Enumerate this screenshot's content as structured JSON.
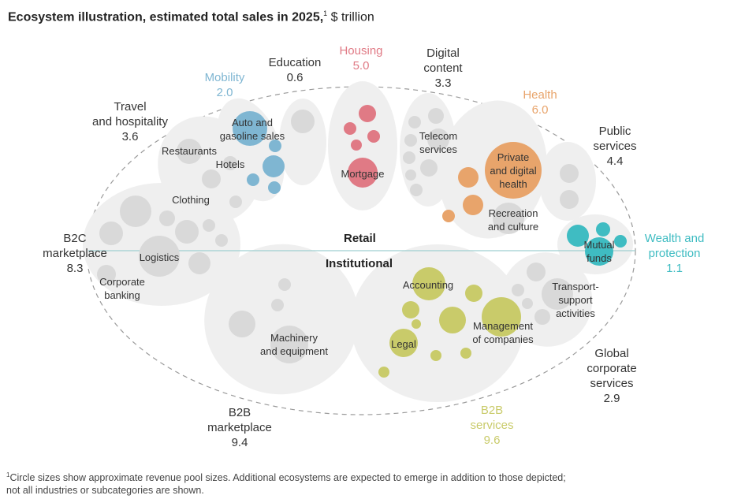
{
  "title": {
    "main": "Ecosystem illustration, estimated total sales in 2025,",
    "marker": "1",
    "unit": " $ trillion"
  },
  "divider": {
    "upper": "Retail",
    "lower": "Institutional"
  },
  "colors": {
    "gray": "#d9d9d9",
    "blob": "#efefef",
    "mobility": "#7fb6d2",
    "housing": "#e07a85",
    "health": "#e8a46b",
    "wealth": "#3fbcc2",
    "b2b": "#c9cb6a",
    "line": "#9fcfd0"
  },
  "ecosystems": [
    {
      "id": "b2c",
      "name": "B2C\nmarketplace",
      "value": "8.3",
      "color": "#333333"
    },
    {
      "id": "travel",
      "name": "Travel\nand hospitality",
      "value": "3.6",
      "color": "#333333"
    },
    {
      "id": "mobility",
      "name": "Mobility",
      "value": "2.0",
      "color": "#7fb6d2"
    },
    {
      "id": "education",
      "name": "Education",
      "value": "0.6",
      "color": "#333333"
    },
    {
      "id": "housing",
      "name": "Housing",
      "value": "5.0",
      "color": "#e07a85"
    },
    {
      "id": "digital",
      "name": "Digital\ncontent",
      "value": "3.3",
      "color": "#333333"
    },
    {
      "id": "health",
      "name": "Health",
      "value": "6.0",
      "color": "#e8a46b"
    },
    {
      "id": "public",
      "name": "Public\nservices",
      "value": "4.4",
      "color": "#333333"
    },
    {
      "id": "wealth",
      "name": "Wealth and\nprotection",
      "value": "1.1",
      "color": "#3fbcc2"
    },
    {
      "id": "global",
      "name": "Global\ncorporate\nservices",
      "value": "2.9",
      "color": "#333333"
    },
    {
      "id": "b2bservices",
      "name": "B2B\nservices",
      "value": "9.6",
      "color": "#c9cb6a"
    },
    {
      "id": "b2bmarket",
      "name": "B2B\nmarketplace",
      "value": "9.4",
      "color": "#333333"
    }
  ],
  "subcategories": {
    "auto": "Auto and\ngasoline sales",
    "restaurants": "Restaurants",
    "hotels": "Hotels",
    "clothing": "Clothing",
    "logistics": "Logistics",
    "corporate_banking": "Corporate\nbanking",
    "mortgage": "Mortgage",
    "telecom": "Telecom\nservices",
    "private_health": "Private\nand digital\nhealth",
    "recreation": "Recreation\nand culture",
    "mutual_funds": "Mutual\nfunds",
    "transport": "Transport-\nsupport\nactivities",
    "accounting": "Accounting",
    "management": "Management\nof companies",
    "legal": "Legal",
    "machinery": "Machinery\nand equipment"
  },
  "footnote": {
    "marker": "1",
    "text": "Circle sizes show approximate revenue pool sizes. Additional ecosystems are expected to emerge in addition to those depicted;\nnot all industries or subcategories are shown."
  }
}
